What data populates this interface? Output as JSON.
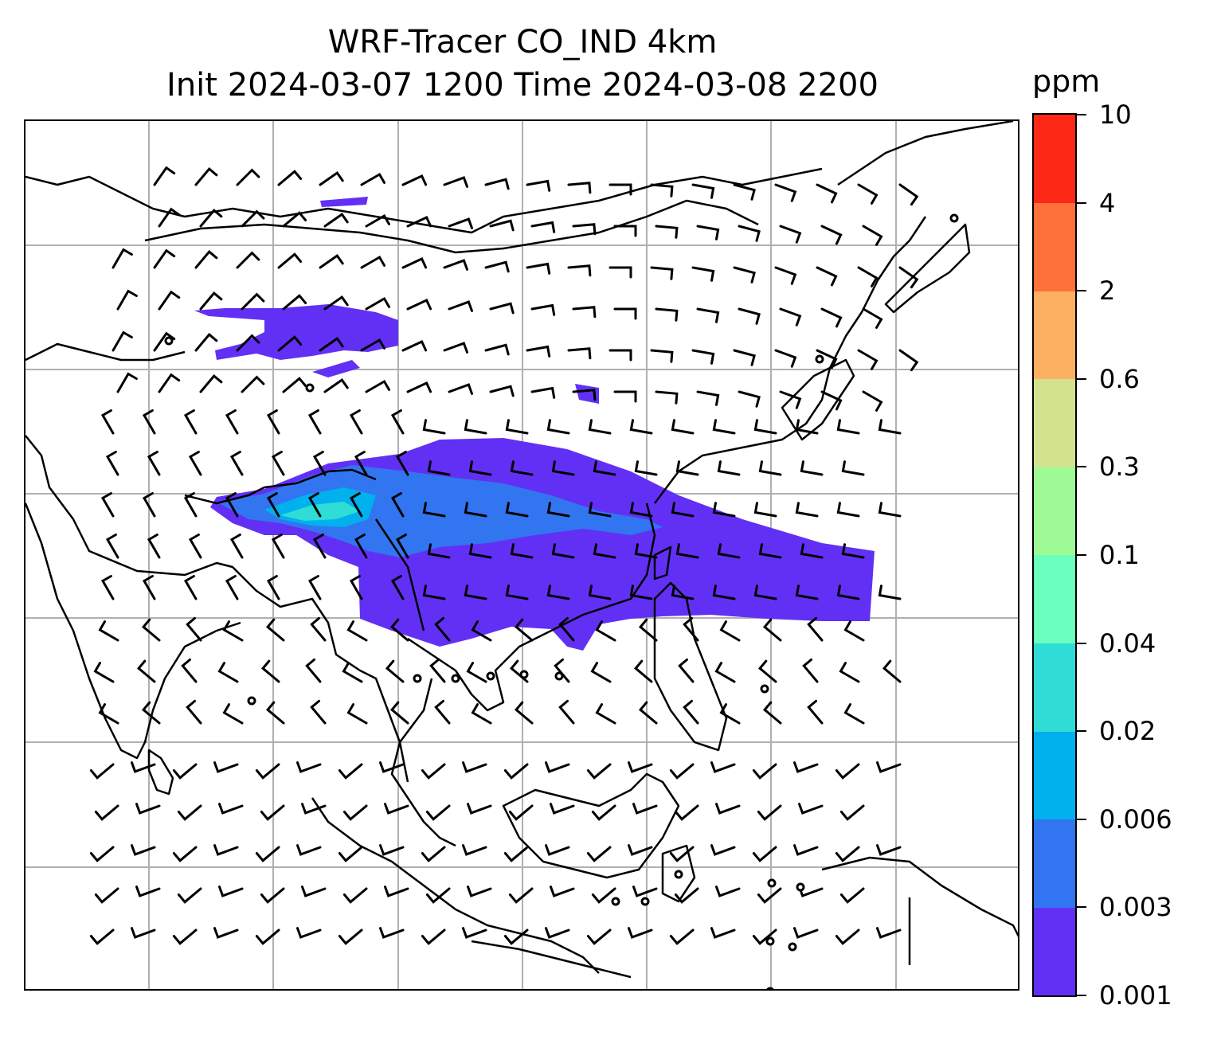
{
  "title": {
    "line1": "WRF-Tracer CO_IND 4km",
    "line2": "Init 2024-03-07 1200 Time 2024-03-08 2200"
  },
  "colorbar": {
    "unit": "ppm",
    "levels": [
      "0.001",
      "0.003",
      "0.006",
      "0.02",
      "0.04",
      "0.1",
      "0.3",
      "0.6",
      "2",
      "4",
      "10"
    ],
    "colors": [
      "#6230f5",
      "#3275f0",
      "#00b1ee",
      "#2fdcd6",
      "#6affbf",
      "#9efa95",
      "#d3e28c",
      "#feb062",
      "#fe713b",
      "#fe2817"
    ]
  },
  "map": {
    "gridlines": "on",
    "grid_color": "#b0b0b0",
    "coastline_color": "#000000",
    "features": [
      "coastlines",
      "country-borders",
      "wind-barbs",
      "calm-circles",
      "co-tracer-plume"
    ]
  }
}
